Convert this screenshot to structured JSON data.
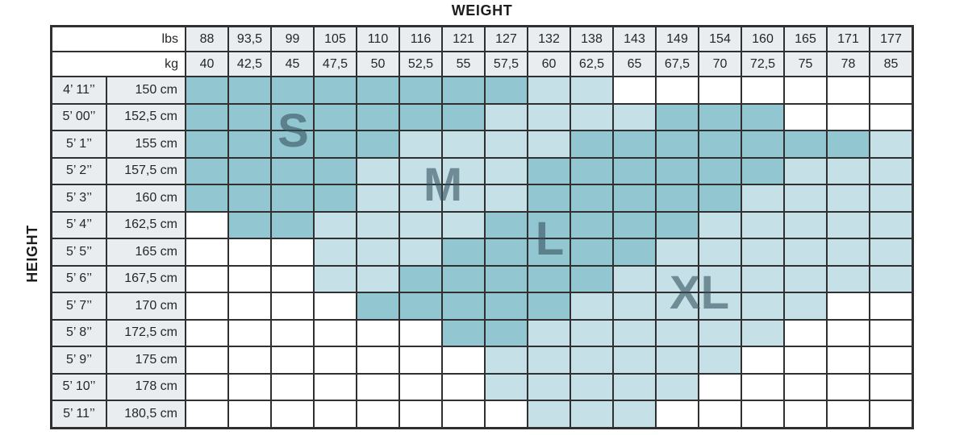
{
  "chart_data": {
    "type": "heatmap",
    "title": "WEIGHT",
    "ylabel": "HEIGHT",
    "x_axis": {
      "imperial_unit": "lbs",
      "metric_unit": "kg",
      "lbs": [
        "88",
        "93,5",
        "99",
        "105",
        "110",
        "116",
        "121",
        "127",
        "132",
        "138",
        "143",
        "149",
        "154",
        "160",
        "165",
        "171",
        "177"
      ],
      "kg": [
        "40",
        "42,5",
        "45",
        "47,5",
        "50",
        "52,5",
        "55",
        "57,5",
        "60",
        "62,5",
        "65",
        "67,5",
        "70",
        "72,5",
        "75",
        "78",
        "85"
      ]
    },
    "rows": [
      {
        "ft": "4’ 11’’",
        "cm": "150 cm",
        "cells": "mmmmmmmmllwwwwwww"
      },
      {
        "ft": "5’ 00’’",
        "cm": "152,5 cm",
        "cells": "mmmmmmmllllmmmwww"
      },
      {
        "ft": "5’ 1’’",
        "cm": "155 cm",
        "cells": "mmmmmllllmmmmmmml"
      },
      {
        "ft": "5’ 2’’",
        "cm": "157,5 cm",
        "cells": "mmmmllllmmmmmmlll"
      },
      {
        "ft": "5’ 3’’",
        "cm": "160 cm",
        "cells": "mmmmllllmmmmmllll"
      },
      {
        "ft": "5’ 4’’",
        "cm": "162,5 cm",
        "cells": "wmmllllmmmmmlllll"
      },
      {
        "ft": "5’ 5’’",
        "cm": "165 cm",
        "cells": "wwwlllmmmmmllllll"
      },
      {
        "ft": "5’ 6’’",
        "cm": "167,5 cm",
        "cells": "wwwllmmmmmlllllll"
      },
      {
        "ft": "5’ 7’’",
        "cm": "170 cm",
        "cells": "wwwwmmmmmllllllww"
      },
      {
        "ft": "5’ 8’’",
        "cm": "172,5 cm",
        "cells": "wwwwwwmmllllllwww"
      },
      {
        "ft": "5’ 9’’",
        "cm": "175 cm",
        "cells": "wwwwwwwllllllwwww"
      },
      {
        "ft": "5’ 10’’",
        "cm": "178 cm",
        "cells": "wwwwwwwlllllwwwww"
      },
      {
        "ft": "5’ 11’’",
        "cm": "180,5 cm",
        "cells": "wwwwwwwwlllwwwwww"
      }
    ],
    "cell_legend": {
      "m": "primary fit range (dark teal)",
      "l": "extended fit range (light teal)",
      "w": "outside range (white)"
    },
    "size_labels": [
      {
        "label": "S",
        "col_center": 2.5,
        "row_center": 2
      },
      {
        "label": "M",
        "col_center": 6,
        "row_center": 4
      },
      {
        "label": "L",
        "col_center": 8.5,
        "row_center": 6
      },
      {
        "label": "XL",
        "col_center": 12,
        "row_center": 8
      }
    ]
  },
  "colors": {
    "fit_primary": "#92c7d1",
    "fit_secondary": "#c6e0e7",
    "header_fill": "#e9edf0",
    "grid_line": "#303030",
    "size_letter": "#36535f",
    "text": "#262626"
  }
}
